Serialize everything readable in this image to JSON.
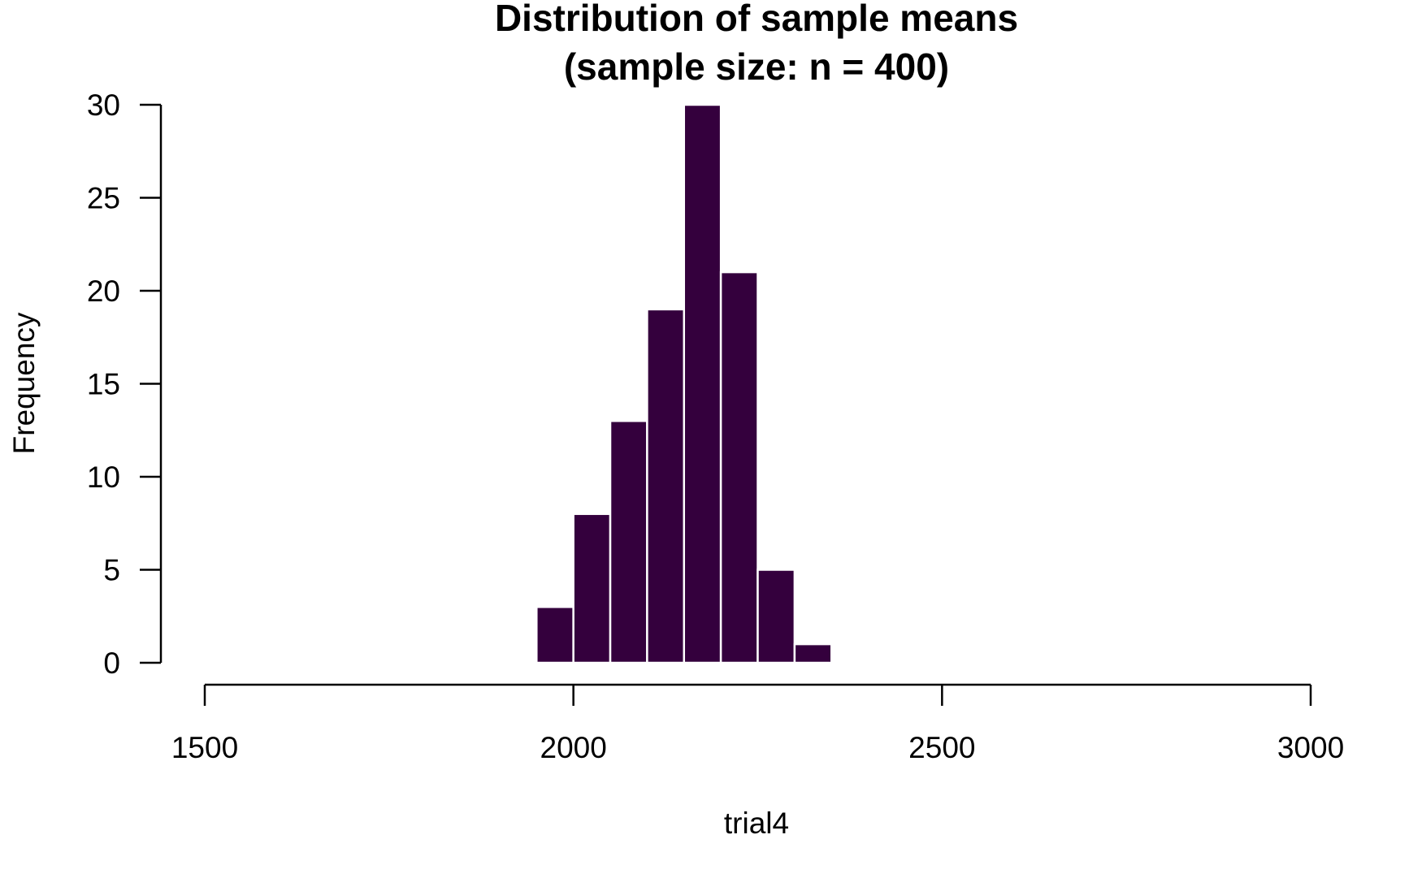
{
  "chart_data": {
    "type": "bar",
    "title_lines": [
      "Distribution of sample means",
      "(sample size: n = 400)"
    ],
    "xlabel": "trial4",
    "ylabel": "Frequency",
    "bin_width": 50,
    "bins": [
      {
        "start": 1950,
        "end": 2000,
        "count": 3
      },
      {
        "start": 2000,
        "end": 2050,
        "count": 8
      },
      {
        "start": 2050,
        "end": 2100,
        "count": 13
      },
      {
        "start": 2100,
        "end": 2150,
        "count": 19
      },
      {
        "start": 2150,
        "end": 2200,
        "count": 30
      },
      {
        "start": 2200,
        "end": 2250,
        "count": 21
      },
      {
        "start": 2250,
        "end": 2300,
        "count": 5
      },
      {
        "start": 2300,
        "end": 2350,
        "count": 1
      }
    ],
    "xlim": [
      1500,
      3000
    ],
    "ylim": [
      0,
      30
    ],
    "x_ticks": [
      1500,
      2000,
      2500,
      3000
    ],
    "x_tick_labels": [
      "1500",
      "2000",
      "2500",
      "3000"
    ],
    "y_ticks": [
      0,
      5,
      10,
      15,
      20,
      25,
      30
    ],
    "y_tick_labels": [
      "0",
      "5",
      "10",
      "15",
      "20",
      "25",
      "30"
    ],
    "bar_color": "#34003d",
    "bar_border_color": "#ffffff",
    "grid": false,
    "legend": "none"
  }
}
